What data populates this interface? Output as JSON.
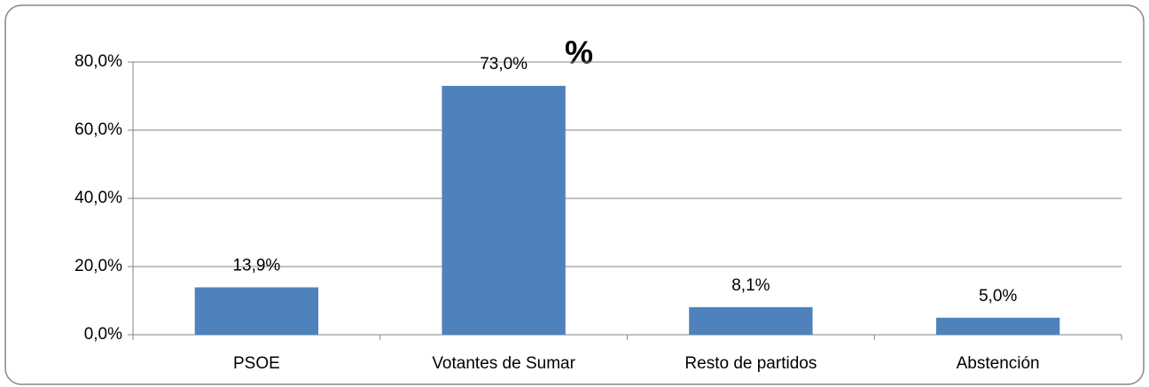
{
  "chart_data": {
    "type": "bar",
    "title": "%",
    "categories": [
      "PSOE",
      "Votantes de Sumar",
      "Resto de partidos",
      "Abstención"
    ],
    "values": [
      13.9,
      73.0,
      8.1,
      5.0
    ],
    "value_labels": [
      "13,9%",
      "73,0%",
      "8,1%",
      "5,0%"
    ],
    "color": "#4f81bd",
    "ylim": [
      0,
      80
    ],
    "yticks": [
      {
        "value": 0,
        "label": "0,0%"
      },
      {
        "value": 20,
        "label": "20,0%"
      },
      {
        "value": 40,
        "label": "40,0%"
      },
      {
        "value": 60,
        "label": "60,0%"
      },
      {
        "value": 80,
        "label": "80,0%"
      }
    ],
    "grid": true
  }
}
